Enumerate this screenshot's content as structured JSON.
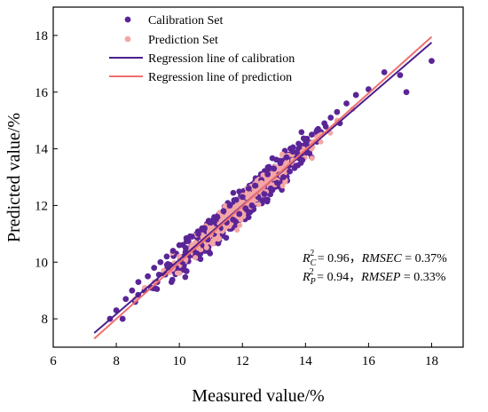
{
  "chart_data": {
    "type": "scatter",
    "xlabel": "Measured value/%",
    "ylabel": "Predicted value/%",
    "xlim": [
      6,
      19
    ],
    "ylim": [
      7,
      19
    ],
    "x_ticks": [
      6,
      8,
      10,
      12,
      14,
      16,
      18
    ],
    "y_ticks": [
      8,
      10,
      12,
      14,
      16,
      18
    ],
    "grid": false,
    "legend_position": "top-left",
    "series": [
      {
        "name": "Calibration Set",
        "kind": "scatter",
        "color": "#5a2597",
        "x": [
          7.8,
          8.0,
          8.2,
          8.3,
          8.5,
          8.6,
          8.7,
          8.9,
          9.0,
          9.1,
          9.2,
          9.3,
          9.4,
          9.5,
          9.6,
          9.7,
          9.8,
          9.9,
          10.0,
          10.1,
          10.2,
          10.3,
          10.4,
          10.5,
          10.6,
          10.7,
          10.8,
          10.9,
          11.0,
          11.1,
          11.2,
          11.3,
          11.4,
          11.5,
          11.6,
          11.7,
          11.8,
          11.9,
          12.0,
          12.1,
          12.2,
          12.3,
          12.4,
          12.5,
          12.6,
          12.7,
          12.8,
          12.9,
          13.0,
          13.1,
          13.2,
          13.3,
          13.4,
          13.5,
          13.6,
          13.7,
          13.8,
          13.9,
          14.0,
          14.2,
          14.4,
          14.6,
          14.8,
          15.0,
          15.3,
          15.6,
          16.0,
          16.5,
          17.0,
          17.2,
          18.0
        ],
        "y": [
          8.0,
          8.3,
          8.0,
          8.7,
          9.0,
          8.6,
          9.3,
          9.0,
          9.5,
          9.1,
          9.8,
          9.3,
          10.0,
          9.6,
          10.2,
          9.9,
          10.4,
          9.8,
          10.6,
          10.0,
          10.5,
          10.2,
          10.9,
          10.4,
          11.0,
          10.6,
          11.2,
          10.8,
          11.4,
          11.0,
          11.6,
          11.2,
          11.8,
          11.4,
          12.0,
          11.5,
          12.2,
          11.7,
          12.3,
          11.9,
          12.6,
          12.0,
          12.7,
          12.3,
          12.9,
          12.4,
          13.1,
          12.6,
          13.3,
          12.8,
          13.5,
          13.0,
          13.7,
          13.2,
          13.9,
          13.4,
          14.0,
          13.6,
          14.3,
          14.5,
          14.7,
          14.9,
          15.1,
          15.3,
          15.6,
          15.9,
          16.1,
          16.7,
          16.6,
          16.0,
          17.1
        ]
      },
      {
        "name": "Prediction Set",
        "kind": "scatter",
        "color": "#f4a6a6",
        "x": [
          8.6,
          8.9,
          9.2,
          9.5,
          9.8,
          10.0,
          10.2,
          10.4,
          10.6,
          10.8,
          11.0,
          11.2,
          11.4,
          11.6,
          11.8,
          12.0,
          12.2,
          12.4,
          12.6,
          12.8,
          13.0,
          13.2,
          13.4,
          13.6,
          13.9,
          14.2,
          14.5,
          15.0,
          15.5
        ],
        "y": [
          8.7,
          9.1,
          9.3,
          9.7,
          9.8,
          10.2,
          10.1,
          10.6,
          10.5,
          10.9,
          11.0,
          11.1,
          11.5,
          11.7,
          11.9,
          12.1,
          12.3,
          12.4,
          12.8,
          12.9,
          13.1,
          13.3,
          13.5,
          13.6,
          13.9,
          14.2,
          14.5,
          15.0,
          15.4
        ]
      },
      {
        "name": "Regression line of calibration",
        "kind": "line",
        "color": "#4b1f8c",
        "x": [
          7.3,
          18.0
        ],
        "y": [
          7.5,
          17.75
        ]
      },
      {
        "name": "Regression line of prediction",
        "kind": "line",
        "color": "#ef6f6f",
        "x": [
          7.3,
          18.0
        ],
        "y": [
          7.3,
          17.95
        ]
      }
    ],
    "annotations": [
      {
        "r2_symbol": "R",
        "r2_sub": "C",
        "r2_sup": "2",
        "r2_value": " = 0.96，",
        "rmse_name": "RMSEC",
        "rmse_value": " = 0.37%"
      },
      {
        "r2_symbol": "R",
        "r2_sub": "P",
        "r2_sup": "2",
        "r2_value": " = 0.94，",
        "rmse_name": "RMSEP",
        "rmse_value": " = 0.33%"
      }
    ]
  }
}
